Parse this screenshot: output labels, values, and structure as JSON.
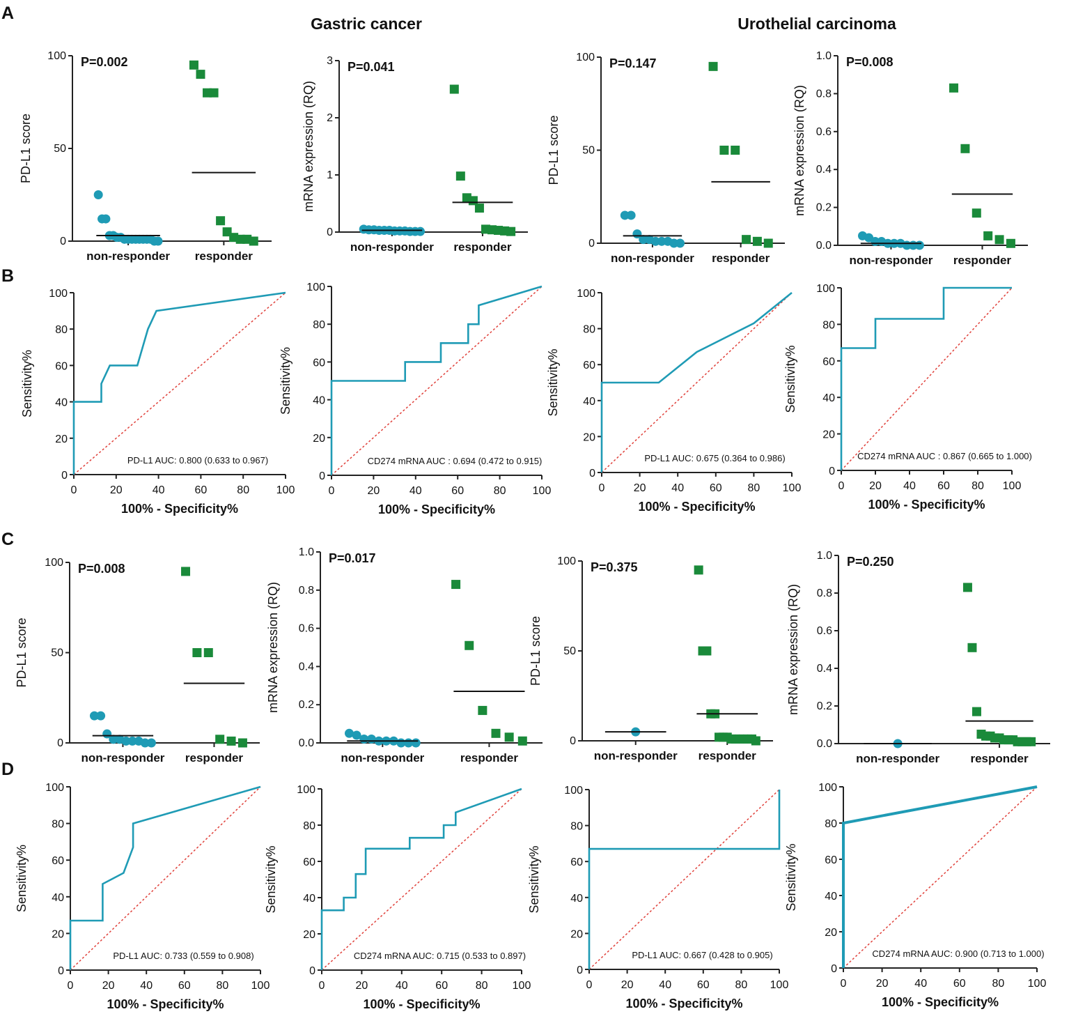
{
  "panel_letters": [
    "A",
    "B",
    "C",
    "D"
  ],
  "group_titles": [
    "Gastric cancer",
    "Urothelial carcinoma"
  ],
  "chart_data": [
    {
      "type": "scatter",
      "panel": "A",
      "title": "P=0.002",
      "ylabel": "PD-L1 score",
      "categories": [
        "non-responder",
        "responder"
      ],
      "ylim": [
        0,
        100
      ],
      "yticks": [
        0,
        50,
        100
      ],
      "series": [
        {
          "name": "non-responder",
          "marker": "circle",
          "color": "#1f9bb5",
          "values": [
            25,
            12,
            12,
            3,
            3,
            2,
            2,
            1,
            1,
            1,
            1,
            1,
            1,
            1,
            1,
            0,
            0
          ]
        },
        {
          "name": "responder",
          "marker": "square",
          "color": "#1a8a3a",
          "values": [
            95,
            90,
            80,
            80,
            11,
            5,
            2,
            1,
            1,
            0
          ]
        }
      ],
      "medians": [
        3,
        37
      ]
    },
    {
      "type": "scatter",
      "panel": "A",
      "title": "P=0.041",
      "ylabel": "mRNA expression (RQ)",
      "categories": [
        "non-responder",
        "responder"
      ],
      "ylim": [
        0,
        3
      ],
      "yticks": [
        0,
        1,
        2,
        3
      ],
      "series": [
        {
          "name": "non-responder",
          "marker": "circle",
          "color": "#1f9bb5",
          "values": [
            0.05,
            0.04,
            0.04,
            0.03,
            0.03,
            0.03,
            0.02,
            0.02,
            0.02,
            0.01,
            0.01,
            0.01
          ]
        },
        {
          "name": "responder",
          "marker": "square",
          "color": "#1a8a3a",
          "values": [
            2.5,
            0.98,
            0.6,
            0.55,
            0.42,
            0.05,
            0.04,
            0.03,
            0.02,
            0.01
          ]
        }
      ],
      "medians": [
        0.03,
        0.52
      ]
    },
    {
      "type": "scatter",
      "panel": "A",
      "title": "P=0.147",
      "ylabel": "PD-L1 score",
      "categories": [
        "non-responder",
        "responder"
      ],
      "ylim": [
        0,
        100
      ],
      "yticks": [
        0,
        50,
        100
      ],
      "series": [
        {
          "name": "non-responder",
          "marker": "circle",
          "color": "#1f9bb5",
          "values": [
            15,
            15,
            5,
            2,
            2,
            1,
            1,
            1,
            0,
            0
          ]
        },
        {
          "name": "responder",
          "marker": "square",
          "color": "#1a8a3a",
          "values": [
            95,
            50,
            50,
            2,
            1,
            0
          ]
        }
      ],
      "medians": [
        4,
        33
      ]
    },
    {
      "type": "scatter",
      "panel": "A",
      "title": "P=0.008",
      "ylabel": "mRNA expression (RQ)",
      "categories": [
        "non-responder",
        "responder"
      ],
      "ylim": [
        0,
        1.0
      ],
      "yticks": [
        0.0,
        0.2,
        0.4,
        0.6,
        0.8,
        1.0
      ],
      "series": [
        {
          "name": "non-responder",
          "marker": "circle",
          "color": "#1f9bb5",
          "values": [
            0.05,
            0.04,
            0.02,
            0.02,
            0.01,
            0.01,
            0.01,
            0.0,
            0.0,
            0.0
          ]
        },
        {
          "name": "responder",
          "marker": "square",
          "color": "#1a8a3a",
          "values": [
            0.83,
            0.51,
            0.17,
            0.05,
            0.03,
            0.01
          ]
        }
      ],
      "medians": [
        0.01,
        0.27
      ]
    },
    {
      "type": "line",
      "panel": "B",
      "ylabel": "Sensitivity%",
      "xlabel": "100% - Specificity%",
      "xlim": [
        0,
        100
      ],
      "ylim": [
        0,
        100
      ],
      "ticks": [
        0,
        20,
        40,
        60,
        80,
        100
      ],
      "roc_x": [
        0,
        0,
        13,
        13,
        17,
        30,
        35,
        39,
        100
      ],
      "roc_y": [
        0,
        40,
        40,
        50,
        60,
        60,
        80,
        90,
        100
      ],
      "annotation": "PD-L1 AUC: 0.800 (0.633 to 0.967)"
    },
    {
      "type": "line",
      "panel": "B",
      "ylabel": "Sensitivity%",
      "xlabel": "100% - Specificity%",
      "xlim": [
        0,
        100
      ],
      "ylim": [
        0,
        100
      ],
      "ticks": [
        0,
        20,
        40,
        60,
        80,
        100
      ],
      "roc_x": [
        0,
        0,
        35,
        35,
        52,
        52,
        65,
        65,
        70,
        70,
        100
      ],
      "roc_y": [
        0,
        50,
        50,
        60,
        60,
        70,
        70,
        80,
        80,
        90,
        100
      ],
      "annotation": "CD274 mRNA AUC : 0.694 (0.472 to 0.915)"
    },
    {
      "type": "line",
      "panel": "B",
      "ylabel": "Sensitivity%",
      "xlabel": "100% - Specificity%",
      "xlim": [
        0,
        100
      ],
      "ylim": [
        0,
        100
      ],
      "ticks": [
        0,
        20,
        40,
        60,
        80,
        100
      ],
      "roc_x": [
        0,
        0,
        30,
        50,
        80,
        100
      ],
      "roc_y": [
        0,
        50,
        50,
        67,
        83,
        100
      ],
      "annotation": "PD-L1 AUC: 0.675 (0.364 to 0.986)"
    },
    {
      "type": "line",
      "panel": "B",
      "ylabel": "Sensitivity%",
      "xlabel": "100% - Specificity%",
      "xlim": [
        0,
        100
      ],
      "ylim": [
        0,
        100
      ],
      "ticks": [
        0,
        20,
        40,
        60,
        80,
        100
      ],
      "roc_x": [
        0,
        0,
        20,
        20,
        60,
        60,
        100
      ],
      "roc_y": [
        0,
        67,
        67,
        83,
        83,
        100,
        100
      ],
      "annotation": "CD274 mRNA AUC : 0.867 (0.665 to 1.000)"
    },
    {
      "type": "scatter",
      "panel": "C",
      "title": "P=0.008",
      "ylabel": "PD-L1 score",
      "categories": [
        "non-responder",
        "responder"
      ],
      "ylim": [
        0,
        100
      ],
      "yticks": [
        0,
        50,
        100
      ],
      "series": [
        {
          "name": "non-responder",
          "marker": "circle",
          "color": "#1f9bb5",
          "values": [
            15,
            15,
            5,
            2,
            2,
            1,
            1,
            1,
            0,
            0
          ]
        },
        {
          "name": "responder",
          "marker": "square",
          "color": "#1a8a3a",
          "values": [
            95,
            50,
            50,
            2,
            1,
            0
          ]
        }
      ],
      "medians": [
        4,
        33
      ]
    },
    {
      "type": "scatter",
      "panel": "C",
      "title": "P=0.017",
      "ylabel": "mRNA expression (RQ)",
      "categories": [
        "non-responder",
        "responder"
      ],
      "ylim": [
        0,
        1.0
      ],
      "yticks": [
        0.0,
        0.2,
        0.4,
        0.6,
        0.8,
        1.0
      ],
      "series": [
        {
          "name": "non-responder",
          "marker": "circle",
          "color": "#1f9bb5",
          "values": [
            0.05,
            0.04,
            0.02,
            0.02,
            0.01,
            0.01,
            0.01,
            0.0,
            0.0,
            0.0
          ]
        },
        {
          "name": "responder",
          "marker": "square",
          "color": "#1a8a3a",
          "values": [
            0.83,
            0.51,
            0.17,
            0.05,
            0.03,
            0.01
          ]
        }
      ],
      "medians": [
        0.01,
        0.27
      ]
    },
    {
      "type": "scatter",
      "panel": "C",
      "title": "P=0.375",
      "ylabel": "PD-L1 score",
      "categories": [
        "non-responder",
        "responder"
      ],
      "ylim": [
        0,
        100
      ],
      "yticks": [
        0,
        50,
        100
      ],
      "series": [
        {
          "name": "non-responder",
          "marker": "circle",
          "color": "#1f9bb5",
          "values": [
            5
          ]
        },
        {
          "name": "responder",
          "marker": "square",
          "color": "#1a8a3a",
          "values": [
            95,
            50,
            50,
            15,
            15,
            2,
            2,
            2,
            1,
            1,
            1,
            1,
            1,
            1,
            0
          ]
        }
      ],
      "medians": [
        5,
        15
      ]
    },
    {
      "type": "scatter",
      "panel": "C",
      "title": "P=0.250",
      "ylabel": "mRNA expression (RQ)",
      "categories": [
        "non-responder",
        "responder"
      ],
      "ylim": [
        0,
        1.0
      ],
      "yticks": [
        0.0,
        0.2,
        0.4,
        0.6,
        0.8,
        1.0
      ],
      "series": [
        {
          "name": "non-responder",
          "marker": "circle",
          "color": "#1f9bb5",
          "values": [
            0.0
          ]
        },
        {
          "name": "responder",
          "marker": "square",
          "color": "#1a8a3a",
          "values": [
            0.83,
            0.51,
            0.17,
            0.05,
            0.04,
            0.04,
            0.03,
            0.03,
            0.02,
            0.02,
            0.02,
            0.01,
            0.01,
            0.01,
            0.01
          ]
        }
      ],
      "medians": [
        0.0,
        0.12
      ]
    },
    {
      "type": "line",
      "panel": "D",
      "ylabel": "Sensitivity%",
      "xlabel": "100% - Specificity%",
      "xlim": [
        0,
        100
      ],
      "ylim": [
        0,
        100
      ],
      "ticks": [
        0,
        20,
        40,
        60,
        80,
        100
      ],
      "roc_x": [
        0,
        0,
        17,
        17,
        28,
        33,
        33,
        100
      ],
      "roc_y": [
        0,
        27,
        27,
        47,
        53,
        67,
        80,
        100
      ],
      "annotation": "PD-L1 AUC: 0.733 (0.559 to 0.908)"
    },
    {
      "type": "line",
      "panel": "D",
      "ylabel": "Sensitivity%",
      "xlabel": "100% - Specificity%",
      "xlim": [
        0,
        100
      ],
      "ylim": [
        0,
        100
      ],
      "ticks": [
        0,
        20,
        40,
        60,
        80,
        100
      ],
      "roc_x": [
        0,
        0,
        11,
        11,
        17,
        17,
        22,
        22,
        44,
        44,
        61,
        61,
        67,
        67,
        100
      ],
      "roc_y": [
        0,
        33,
        33,
        40,
        40,
        53,
        53,
        67,
        67,
        73,
        73,
        80,
        80,
        87,
        100
      ],
      "annotation": "CD274 mRNA AUC: 0.715 (0.533 to 0.897)"
    },
    {
      "type": "line",
      "panel": "D",
      "ylabel": "Sensitivity%",
      "xlabel": "100% - Specificity%",
      "xlim": [
        0,
        100
      ],
      "ylim": [
        0,
        100
      ],
      "ticks": [
        0,
        20,
        40,
        60,
        80,
        100
      ],
      "roc_x": [
        0,
        0,
        100,
        100
      ],
      "roc_y": [
        0,
        67,
        67,
        100
      ],
      "annotation": "PD-L1 AUC: 0.667 (0.428 to 0.905)"
    },
    {
      "type": "line",
      "panel": "D",
      "ylabel": "Sensitivity%",
      "xlabel": "100% - Specificity%",
      "xlim": [
        0,
        100
      ],
      "ylim": [
        0,
        100
      ],
      "ticks": [
        0,
        20,
        40,
        60,
        80,
        100
      ],
      "roc_x": [
        0,
        0,
        100
      ],
      "roc_y": [
        0,
        80,
        100
      ],
      "annotation": "CD274 mRNA AUC: 0.900 (0.713 to 1.000)"
    }
  ]
}
